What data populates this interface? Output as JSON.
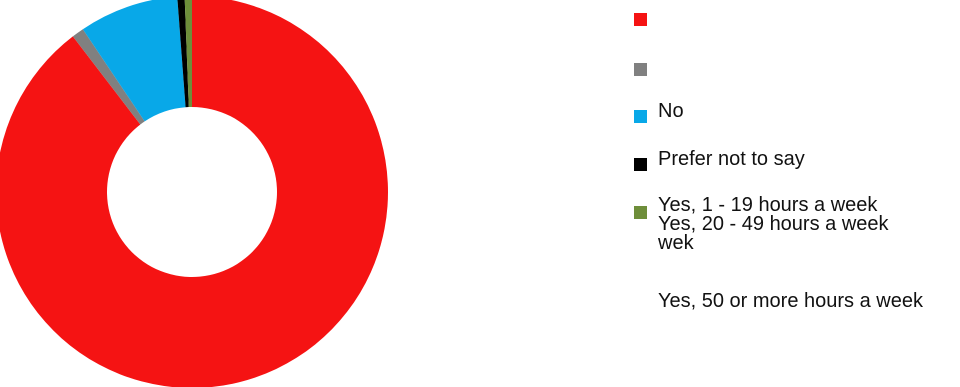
{
  "chart_data": {
    "type": "pie",
    "donut": true,
    "slices": [
      {
        "label": "",
        "value": 89.6,
        "color": "#f51313"
      },
      {
        "label": "",
        "value": 1.0,
        "color": "#808080"
      },
      {
        "label": "No",
        "value": 8.2,
        "color": "#08a8e8"
      },
      {
        "label": "Prefer not to say",
        "value": 0.6,
        "color": "#000000"
      },
      {
        "label": "Yes, 1 - 19 hours a week",
        "value": 0.6,
        "color": "#6e8e3a"
      }
    ],
    "legend": {
      "position": "right",
      "items": [
        {
          "label": "",
          "color": "#f51313"
        },
        {
          "label": "",
          "color": "#808080"
        },
        {
          "label": "No",
          "color": "#08a8e8"
        },
        {
          "label": "Prefer not to say",
          "color": "#000000"
        },
        {
          "label": "Yes, 1 - 19 hours a week\nYes, 20 - 49 hours a week\nwek",
          "color": "#6e8e3a"
        },
        {
          "label": "Yes, 50 or more hours a week",
          "color": null
        }
      ]
    }
  }
}
